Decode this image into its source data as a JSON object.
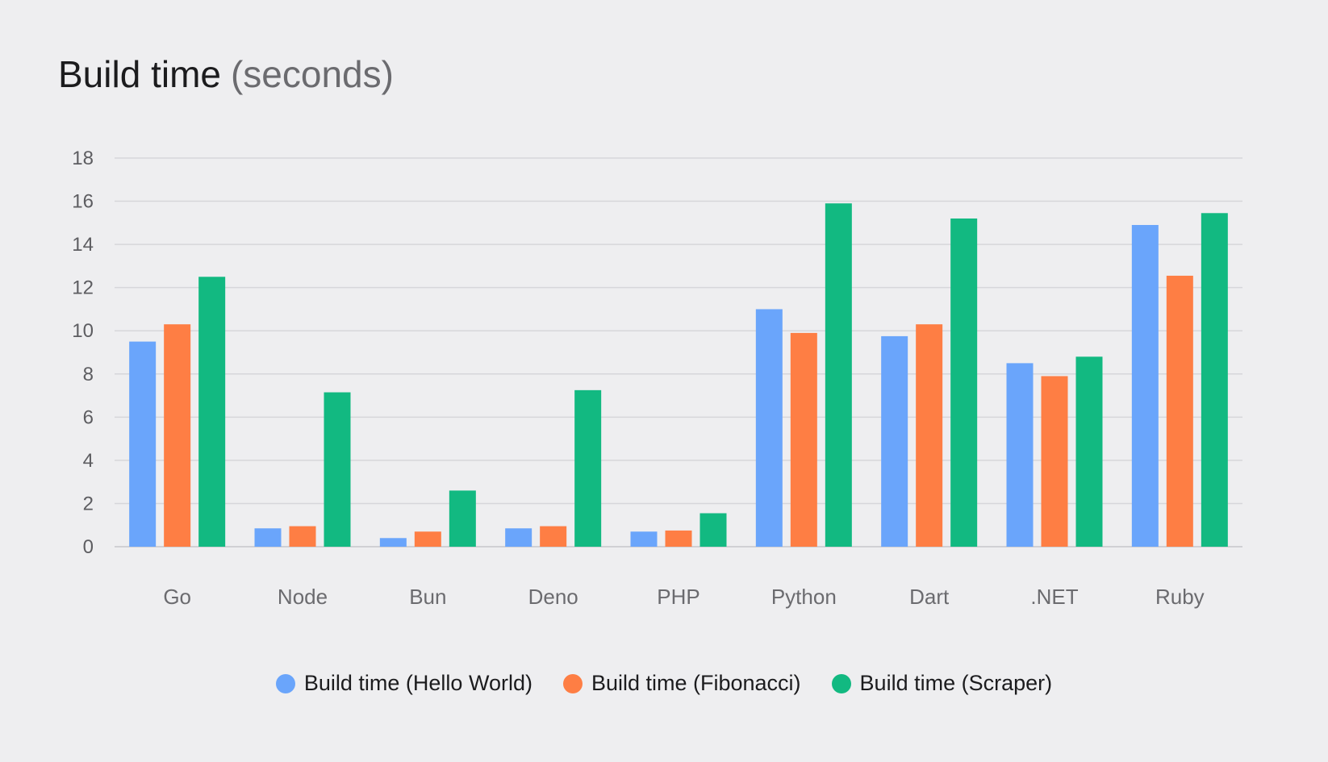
{
  "chart_data": {
    "type": "bar",
    "title": "Build time",
    "subtitle": "(seconds)",
    "categories": [
      "Go",
      "Node",
      "Bun",
      "Deno",
      "PHP",
      "Python",
      "Dart",
      ".NET",
      "Ruby"
    ],
    "series": [
      {
        "name": "Build time (Hello World)",
        "color": "#6aa5fb",
        "values": [
          9.5,
          0.85,
          0.4,
          0.85,
          0.7,
          11.0,
          9.75,
          8.5,
          14.9
        ]
      },
      {
        "name": "Build time (Fibonacci)",
        "color": "#fe7e44",
        "values": [
          10.3,
          0.95,
          0.7,
          0.95,
          0.75,
          9.9,
          10.3,
          7.9,
          12.55
        ]
      },
      {
        "name": "Build time (Scraper)",
        "color": "#12b981",
        "values": [
          12.5,
          7.15,
          2.6,
          7.25,
          1.55,
          15.9,
          15.2,
          8.8,
          15.45
        ]
      }
    ],
    "ylim": [
      0,
      18
    ],
    "yticks": [
      0,
      2,
      4,
      6,
      8,
      10,
      12,
      14,
      16,
      18
    ],
    "grid": true,
    "legend_position": "bottom-center"
  }
}
